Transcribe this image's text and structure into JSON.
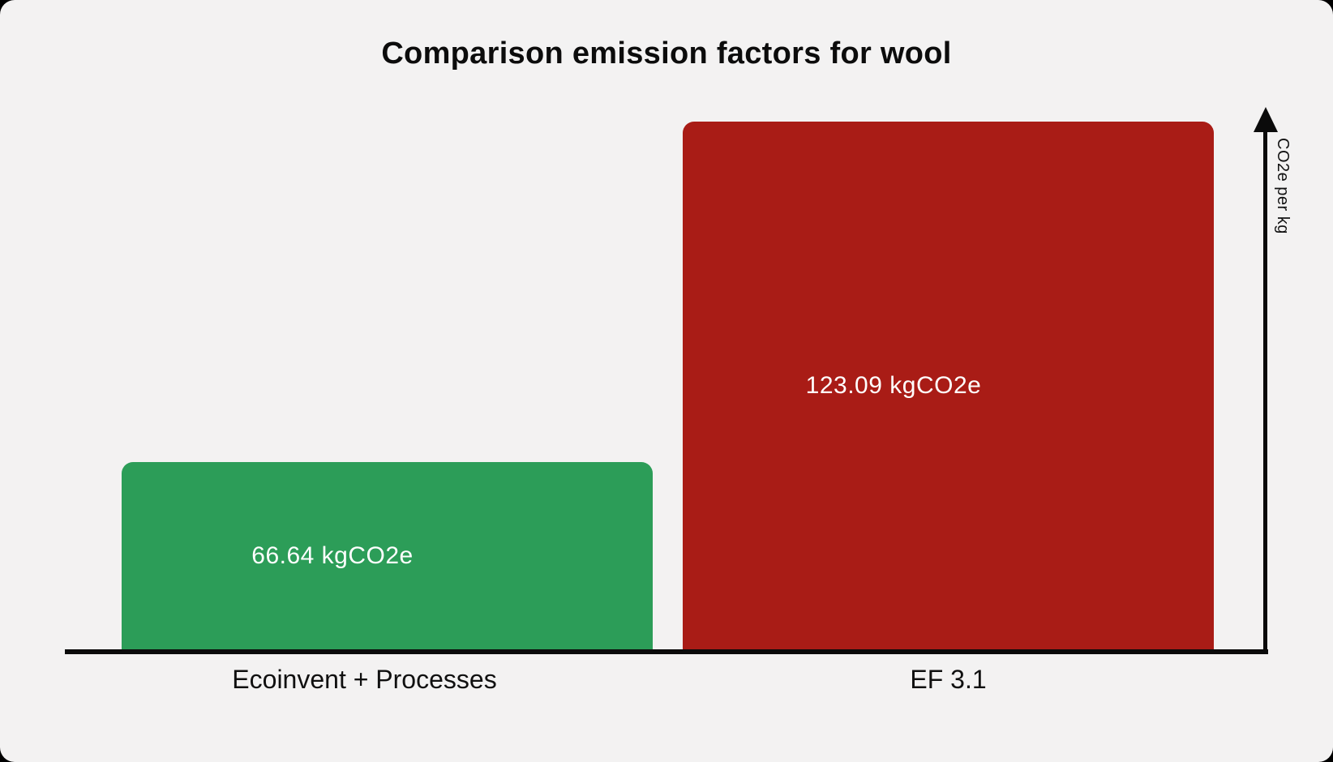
{
  "chart_data": {
    "type": "bar",
    "title": "Comparison emission factors for wool",
    "categories": [
      "Ecoinvent + Processes",
      "EF 3.1"
    ],
    "values": [
      66.64,
      123.09
    ],
    "value_labels": [
      "66.64 kgCO2e",
      "123.09 kgCO2e"
    ],
    "unit": "kgCO2e",
    "xlabel": "",
    "ylabel": "CO2e per kg",
    "legend_position": "none",
    "grid": false,
    "bar_colors": [
      "#2c9d58",
      "#a91c16"
    ],
    "value_label_color": "#ffffff",
    "axis_color": "#0b0b0b",
    "background_color": "#f3f2f2"
  }
}
